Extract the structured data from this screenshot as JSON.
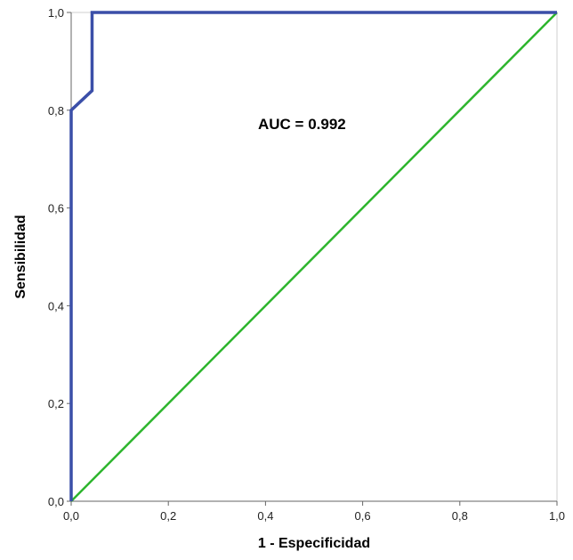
{
  "chart_data": {
    "type": "line",
    "title": "",
    "xlabel": "1 - Especificidad",
    "ylabel": "Sensibilidad",
    "xlim": [
      0,
      1
    ],
    "ylim": [
      0,
      1
    ],
    "x_ticks": [
      "0,0",
      "0,2",
      "0,4",
      "0,6",
      "0,8",
      "1,0"
    ],
    "y_ticks": [
      "0,0",
      "0,2",
      "0,4",
      "0,6",
      "0,8",
      "1,0"
    ],
    "grid": false,
    "annotation": "AUC = 0.992",
    "series": [
      {
        "color": "#3b4fa8",
        "x": [
          0.0,
          0.0,
          0.043,
          0.043,
          1.0
        ],
        "y": [
          0.0,
          0.8,
          0.84,
          1.0,
          1.0
        ]
      },
      {
        "color": "#2db52d",
        "x": [
          0.0,
          1.0
        ],
        "y": [
          0.0,
          1.0
        ]
      }
    ]
  }
}
